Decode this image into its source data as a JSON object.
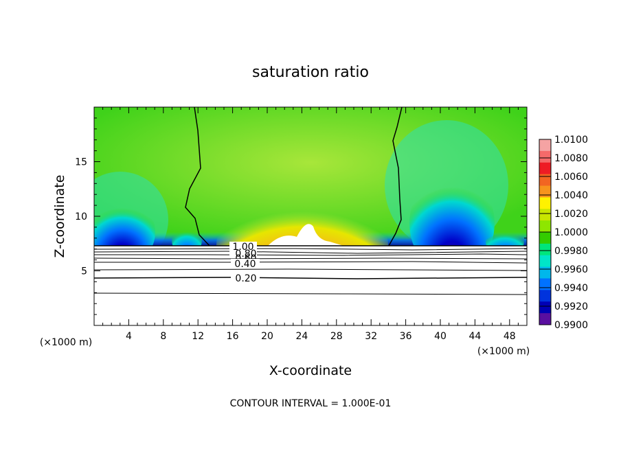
{
  "chart_data": {
    "type": "heatmap",
    "title": "saturation ratio",
    "xlabel": "X-coordinate",
    "ylabel": "Z-coordinate",
    "x_unit": "(×1000 m)",
    "xlim": [
      0,
      50
    ],
    "ylim": [
      0,
      20
    ],
    "x_ticks": [
      4,
      8,
      12,
      16,
      20,
      24,
      28,
      32,
      36,
      40,
      44,
      48
    ],
    "y_ticks": [
      5,
      10,
      15
    ],
    "colorbar": {
      "min": 0.99,
      "max": 1.01,
      "labels": [
        "1.0100",
        "1.0080",
        "1.0060",
        "1.0040",
        "1.0020",
        "1.0000",
        "0.9980",
        "0.9960",
        "0.9940",
        "0.9920",
        "0.9900"
      ],
      "colors": [
        "#f5a3a3",
        "#f46a6a",
        "#ee1c24",
        "#f26522",
        "#f7941d",
        "#fff200",
        "#c8e600",
        "#8ee600",
        "#33cc00",
        "#00e57c",
        "#00e5c8",
        "#00b7eb",
        "#0072ff",
        "#0033dd",
        "#0000b4",
        "#5a0fa0"
      ]
    },
    "contour_labels": [
      "1.00",
      "0.80",
      "0.60",
      "0.40",
      "0.20"
    ],
    "contour_interval_note": "CONTOUR INTERVAL = 1.000E-01"
  }
}
